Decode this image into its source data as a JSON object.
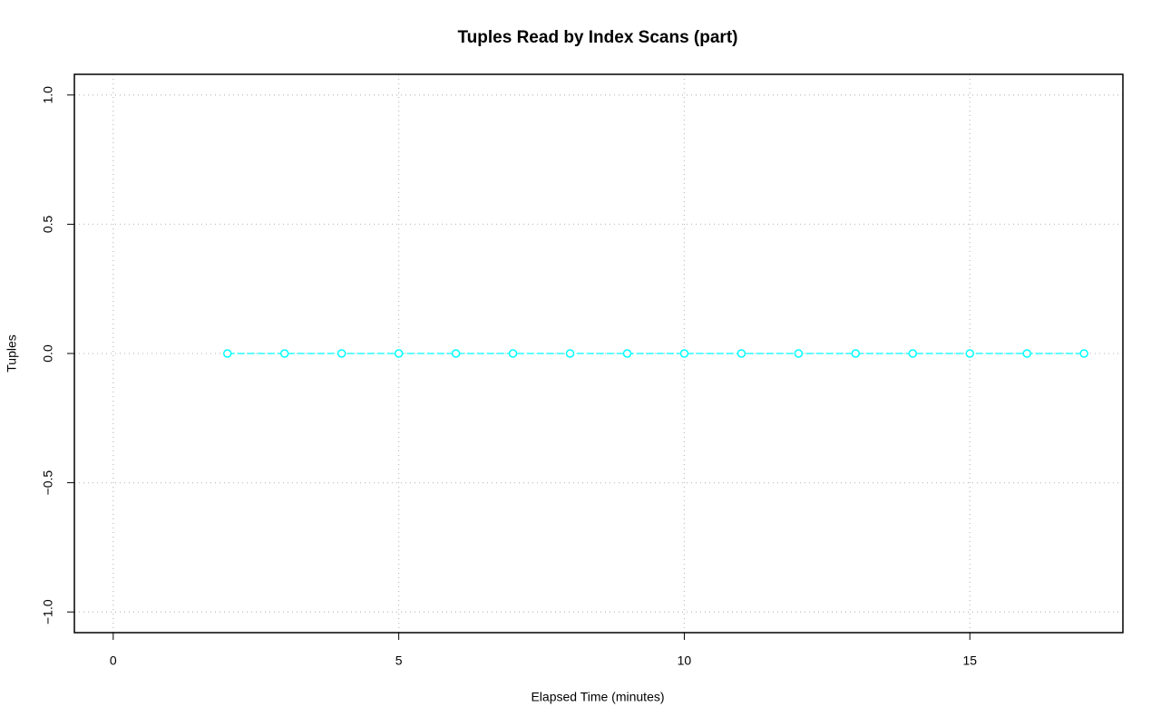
{
  "chart_data": {
    "type": "line",
    "title": "Tuples Read by Index Scans (part)",
    "x_label": "Elapsed Time (minutes)",
    "y_label": "Tuples",
    "x": [
      2,
      3,
      4,
      5,
      6,
      7,
      8,
      9,
      10,
      11,
      12,
      13,
      14,
      15,
      16,
      17
    ],
    "values": [
      0,
      0,
      0,
      0,
      0,
      0,
      0,
      0,
      0,
      0,
      0,
      0,
      0,
      0,
      0,
      0
    ],
    "color": "#00ffff",
    "xlim": [
      -0.68,
      17.68
    ],
    "xticks": [
      0,
      5,
      10,
      15
    ],
    "ylim": [
      -1.08,
      1.08
    ],
    "yticks": [
      {
        "value": -1,
        "label": "−1.0"
      },
      {
        "value": -0.5,
        "label": "−0.5"
      },
      {
        "value": 0,
        "label": "0.0"
      },
      {
        "value": 0.5,
        "label": "0.5"
      },
      {
        "value": 1,
        "label": "1.0"
      }
    ],
    "grid": true
  }
}
